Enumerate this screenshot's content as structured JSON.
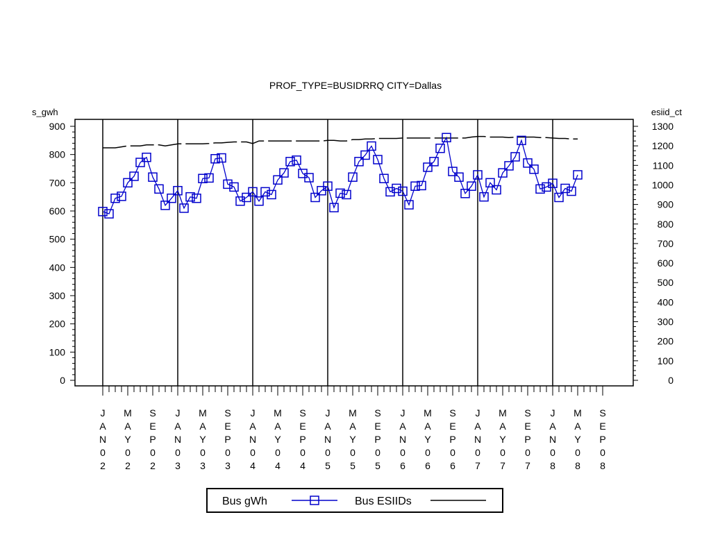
{
  "chart_data": {
    "type": "line",
    "title": "PROF_TYPE=BUSIDRRQ CITY=Dallas",
    "ylabel_left": "s_gwh",
    "ylabel_right": "esiid_ct",
    "ylim_left": [
      0,
      900
    ],
    "ylim_right": [
      0,
      1300
    ],
    "yticks_left": [
      "0",
      "100",
      "200",
      "300",
      "400",
      "500",
      "600",
      "700",
      "800",
      "900"
    ],
    "yticks_right": [
      "0",
      "100",
      "200",
      "300",
      "400",
      "500",
      "600",
      "700",
      "800",
      "900",
      "1000",
      "1100",
      "1200",
      "1300"
    ],
    "x_tick_labels": [
      "JAN02",
      "MAY02",
      "SEP02",
      "JAN03",
      "MAY03",
      "SEP03",
      "JAN04",
      "MAY04",
      "SEP04",
      "JAN05",
      "MAY05",
      "SEP05",
      "JAN06",
      "MAY06",
      "SEP06",
      "JAN07",
      "MAY07",
      "SEP07",
      "JAN08",
      "MAY08",
      "SEP08"
    ],
    "x_start": "2002-01",
    "x_end": "2008-09",
    "year_reference_lines": [
      "2002-01",
      "2003-01",
      "2004-01",
      "2005-01",
      "2006-01",
      "2007-01",
      "2008-01"
    ],
    "legend_position": "bottom-center",
    "series": [
      {
        "name": "Bus gWh",
        "axis": "left",
        "color": "#0000cc",
        "marker": "square",
        "values": [
          598,
          590,
          645,
          652,
          700,
          723,
          772,
          790,
          720,
          678,
          620,
          645,
          672,
          610,
          650,
          645,
          715,
          717,
          785,
          788,
          695,
          685,
          635,
          648,
          668,
          635,
          668,
          658,
          710,
          735,
          775,
          780,
          733,
          718,
          648,
          672,
          688,
          612,
          663,
          658,
          720,
          775,
          798,
          830,
          782,
          715,
          668,
          680,
          670,
          622,
          688,
          690,
          755,
          775,
          822,
          860,
          740,
          720,
          662,
          688,
          728,
          650,
          700,
          675,
          735,
          760,
          792,
          850,
          770,
          748,
          678,
          685,
          698,
          648,
          680,
          670,
          728
        ]
      },
      {
        "name": "Bus ESIIDs",
        "axis": "right",
        "color": "#000000",
        "marker": "none",
        "values": [
          1190,
          1190,
          1190,
          1195,
          1200,
          1200,
          1200,
          1205,
          1205,
          1205,
          1200,
          1205,
          1210,
          1210,
          1210,
          1210,
          1210,
          1212,
          1215,
          1215,
          1218,
          1220,
          1220,
          1220,
          1212,
          1225,
          1225,
          1225,
          1225,
          1225,
          1225,
          1225,
          1225,
          1225,
          1225,
          1225,
          1228,
          1228,
          1225,
          1225,
          1232,
          1232,
          1235,
          1235,
          1238,
          1238,
          1238,
          1238,
          1240,
          1240,
          1240,
          1240,
          1240,
          1240,
          1240,
          1240,
          1240,
          1240,
          1240,
          1245,
          1248,
          1248,
          1245,
          1245,
          1245,
          1242,
          1245,
          1245,
          1245,
          1245,
          1242,
          1242,
          1240,
          1238,
          1238,
          1235,
          1235
        ]
      }
    ]
  }
}
